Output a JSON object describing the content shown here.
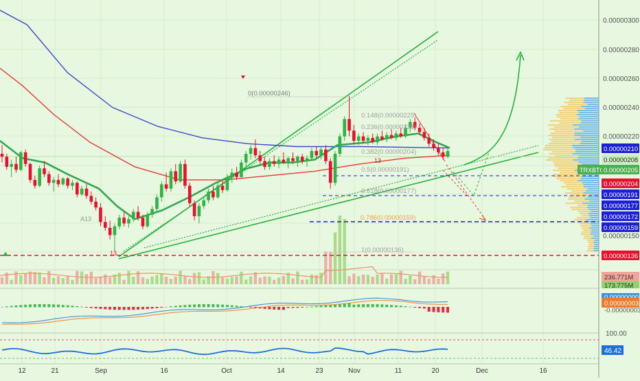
{
  "chart_data": {
    "type": "candlestick",
    "symbol": "TRXBTC",
    "price_axis": {
      "ylim": [
        1.3e-06,
        3.1e-06
      ],
      "ticks": [
        "0.00000300",
        "0.00000280",
        "0.00000260",
        "0.00000240",
        "0.00000220",
        "0.00000150"
      ]
    },
    "price_badges": [
      {
        "value": "0.00000210",
        "color": "#1b1fd6",
        "text_color": "#ffffff"
      },
      {
        "value": "0.00000208",
        "color": "#c9ecc2",
        "text_color": "#2b2b2b"
      },
      {
        "value": "0.00000205",
        "color": "#4caf50",
        "text_color": "#ffffff",
        "prefix": "TRXBTC"
      },
      {
        "value": "0.00000204",
        "color": "#e8112d",
        "text_color": "#ffffff"
      },
      {
        "value": "0.00000191",
        "color": "#1b1fd6",
        "text_color": "#ffffff"
      },
      {
        "value": "0.00000177",
        "color": "#1b1fd6",
        "text_color": "#ffffff"
      },
      {
        "value": "0.00000172",
        "color": "#1b1fd6",
        "text_color": "#ffffff"
      },
      {
        "value": "0.00000159",
        "color": "#1b1fd6",
        "text_color": "#ffffff"
      },
      {
        "value": "0.00000136",
        "color": "#e8112d",
        "text_color": "#ffffff"
      }
    ],
    "fib_levels": [
      {
        "ratio": "0",
        "value": "0.00000246",
        "label": "0(0.00000246)"
      },
      {
        "ratio": "0.148",
        "value": "0.00000225",
        "label": "0.148(0.00000225)"
      },
      {
        "ratio": "0.236",
        "value": "0.00000221",
        "label": "0.236(0.00000221)"
      },
      {
        "ratio": "0.382",
        "value": "0.00000204",
        "label": "0.382(0.00000204)"
      },
      {
        "ratio": "0.5",
        "value": "0.00000191",
        "label": "0.5(0.00000191)"
      },
      {
        "ratio": "0.618",
        "value": "0.00000177",
        "label": "0.618(0.00000177)"
      },
      {
        "ratio": "0.786",
        "value": "0.00000159",
        "label": "0.786(0.00000159)"
      },
      {
        "ratio": "1",
        "value": "0.00000136",
        "label": "1(0.00000136)"
      }
    ],
    "x_axis_labels": [
      "12",
      "21",
      "Sep",
      "16",
      "Oct",
      "14",
      "23",
      "Nov",
      "11",
      "20",
      "Dec",
      "16"
    ],
    "candles": [
      {
        "o": 2.06,
        "h": 2.12,
        "l": 2.0,
        "c": 2.04
      },
      {
        "o": 2.04,
        "h": 2.06,
        "l": 1.95,
        "c": 1.97
      },
      {
        "o": 1.97,
        "h": 2.02,
        "l": 1.9,
        "c": 1.99
      },
      {
        "o": 1.99,
        "h": 2.04,
        "l": 1.93,
        "c": 1.95
      },
      {
        "o": 1.95,
        "h": 2.08,
        "l": 1.94,
        "c": 2.07
      },
      {
        "o": 2.07,
        "h": 2.09,
        "l": 1.97,
        "c": 1.99
      },
      {
        "o": 1.99,
        "h": 2.0,
        "l": 1.86,
        "c": 1.88
      },
      {
        "o": 1.88,
        "h": 1.91,
        "l": 1.82,
        "c": 1.84
      },
      {
        "o": 1.84,
        "h": 1.98,
        "l": 1.83,
        "c": 1.96
      },
      {
        "o": 1.96,
        "h": 2.01,
        "l": 1.9,
        "c": 1.92
      },
      {
        "o": 1.92,
        "h": 1.94,
        "l": 1.84,
        "c": 1.86
      },
      {
        "o": 1.86,
        "h": 1.9,
        "l": 1.8,
        "c": 1.88
      },
      {
        "o": 1.88,
        "h": 1.92,
        "l": 1.83,
        "c": 1.85
      },
      {
        "o": 1.85,
        "h": 1.9,
        "l": 1.84,
        "c": 1.89
      },
      {
        "o": 1.89,
        "h": 1.9,
        "l": 1.82,
        "c": 1.84
      },
      {
        "o": 1.84,
        "h": 1.88,
        "l": 1.81,
        "c": 1.86
      },
      {
        "o": 1.86,
        "h": 1.87,
        "l": 1.76,
        "c": 1.78
      },
      {
        "o": 1.78,
        "h": 1.84,
        "l": 1.77,
        "c": 1.82
      },
      {
        "o": 1.82,
        "h": 1.85,
        "l": 1.75,
        "c": 1.77
      },
      {
        "o": 1.77,
        "h": 1.8,
        "l": 1.71,
        "c": 1.73
      },
      {
        "o": 1.73,
        "h": 1.76,
        "l": 1.67,
        "c": 1.69
      },
      {
        "o": 1.69,
        "h": 1.72,
        "l": 1.56,
        "c": 1.59
      },
      {
        "o": 1.59,
        "h": 1.63,
        "l": 1.53,
        "c": 1.55
      },
      {
        "o": 1.55,
        "h": 1.6,
        "l": 1.47,
        "c": 1.5
      },
      {
        "o": 1.5,
        "h": 1.58,
        "l": 1.39,
        "c": 1.56
      },
      {
        "o": 1.56,
        "h": 1.64,
        "l": 1.54,
        "c": 1.62
      },
      {
        "o": 1.62,
        "h": 1.66,
        "l": 1.56,
        "c": 1.58
      },
      {
        "o": 1.58,
        "h": 1.63,
        "l": 1.55,
        "c": 1.61
      },
      {
        "o": 1.61,
        "h": 1.68,
        "l": 1.59,
        "c": 1.66
      },
      {
        "o": 1.66,
        "h": 1.7,
        "l": 1.6,
        "c": 1.62
      },
      {
        "o": 1.62,
        "h": 1.64,
        "l": 1.54,
        "c": 1.56
      },
      {
        "o": 1.56,
        "h": 1.66,
        "l": 1.55,
        "c": 1.64
      },
      {
        "o": 1.64,
        "h": 1.7,
        "l": 1.62,
        "c": 1.68
      },
      {
        "o": 1.68,
        "h": 1.78,
        "l": 1.66,
        "c": 1.76
      },
      {
        "o": 1.76,
        "h": 1.87,
        "l": 1.73,
        "c": 1.85
      },
      {
        "o": 1.85,
        "h": 1.93,
        "l": 1.8,
        "c": 1.82
      },
      {
        "o": 1.82,
        "h": 1.96,
        "l": 1.8,
        "c": 1.94
      },
      {
        "o": 1.94,
        "h": 1.99,
        "l": 1.85,
        "c": 1.87
      },
      {
        "o": 1.87,
        "h": 2.01,
        "l": 1.86,
        "c": 1.99
      },
      {
        "o": 1.99,
        "h": 2.02,
        "l": 1.82,
        "c": 1.84
      },
      {
        "o": 1.84,
        "h": 1.86,
        "l": 1.7,
        "c": 1.72
      },
      {
        "o": 1.72,
        "h": 1.74,
        "l": 1.6,
        "c": 1.63
      },
      {
        "o": 1.63,
        "h": 1.72,
        "l": 1.58,
        "c": 1.7
      },
      {
        "o": 1.7,
        "h": 1.76,
        "l": 1.68,
        "c": 1.74
      },
      {
        "o": 1.74,
        "h": 1.82,
        "l": 1.72,
        "c": 1.8
      },
      {
        "o": 1.8,
        "h": 1.84,
        "l": 1.74,
        "c": 1.76
      },
      {
        "o": 1.76,
        "h": 1.86,
        "l": 1.75,
        "c": 1.84
      },
      {
        "o": 1.84,
        "h": 1.88,
        "l": 1.79,
        "c": 1.81
      },
      {
        "o": 1.81,
        "h": 1.92,
        "l": 1.8,
        "c": 1.9
      },
      {
        "o": 1.9,
        "h": 1.96,
        "l": 1.86,
        "c": 1.93
      },
      {
        "o": 1.93,
        "h": 1.97,
        "l": 1.88,
        "c": 1.9
      },
      {
        "o": 1.9,
        "h": 2.02,
        "l": 1.89,
        "c": 2.0
      },
      {
        "o": 2.0,
        "h": 2.08,
        "l": 1.97,
        "c": 2.06
      },
      {
        "o": 2.06,
        "h": 2.12,
        "l": 2.02,
        "c": 2.1
      },
      {
        "o": 2.1,
        "h": 2.16,
        "l": 2.03,
        "c": 2.05
      },
      {
        "o": 2.05,
        "h": 2.08,
        "l": 1.99,
        "c": 2.01
      },
      {
        "o": 2.01,
        "h": 2.04,
        "l": 1.95,
        "c": 1.97
      },
      {
        "o": 1.97,
        "h": 2.03,
        "l": 1.95,
        "c": 2.01
      },
      {
        "o": 2.01,
        "h": 2.05,
        "l": 1.97,
        "c": 1.99
      },
      {
        "o": 1.99,
        "h": 2.04,
        "l": 1.96,
        "c": 2.02
      },
      {
        "o": 2.02,
        "h": 2.07,
        "l": 1.99,
        "c": 2.0
      },
      {
        "o": 2.0,
        "h": 2.04,
        "l": 1.96,
        "c": 2.03
      },
      {
        "o": 2.03,
        "h": 2.07,
        "l": 1.99,
        "c": 2.01
      },
      {
        "o": 2.01,
        "h": 2.05,
        "l": 1.97,
        "c": 2.04
      },
      {
        "o": 2.04,
        "h": 2.06,
        "l": 1.99,
        "c": 2.01
      },
      {
        "o": 2.01,
        "h": 2.05,
        "l": 1.97,
        "c": 2.03
      },
      {
        "o": 2.03,
        "h": 2.1,
        "l": 2.01,
        "c": 2.08
      },
      {
        "o": 2.08,
        "h": 2.11,
        "l": 2.03,
        "c": 2.05
      },
      {
        "o": 2.05,
        "h": 2.11,
        "l": 2.02,
        "c": 2.09
      },
      {
        "o": 2.09,
        "h": 2.12,
        "l": 1.99,
        "c": 2.01
      },
      {
        "o": 2.01,
        "h": 2.03,
        "l": 1.82,
        "c": 1.86
      },
      {
        "o": 1.86,
        "h": 2.08,
        "l": 1.84,
        "c": 2.06
      },
      {
        "o": 2.06,
        "h": 2.2,
        "l": 2.04,
        "c": 2.18
      },
      {
        "o": 2.18,
        "h": 2.32,
        "l": 2.15,
        "c": 2.3
      },
      {
        "o": 2.3,
        "h": 2.46,
        "l": 2.18,
        "c": 2.22
      },
      {
        "o": 2.22,
        "h": 2.26,
        "l": 2.13,
        "c": 2.15
      },
      {
        "o": 2.15,
        "h": 2.2,
        "l": 2.12,
        "c": 2.18
      },
      {
        "o": 2.18,
        "h": 2.21,
        "l": 2.13,
        "c": 2.15
      },
      {
        "o": 2.15,
        "h": 2.19,
        "l": 2.12,
        "c": 2.17
      },
      {
        "o": 2.17,
        "h": 2.2,
        "l": 2.13,
        "c": 2.14
      },
      {
        "o": 2.14,
        "h": 2.2,
        "l": 2.12,
        "c": 2.18
      },
      {
        "o": 2.18,
        "h": 2.22,
        "l": 2.15,
        "c": 2.16
      },
      {
        "o": 2.16,
        "h": 2.21,
        "l": 2.14,
        "c": 2.19
      },
      {
        "o": 2.19,
        "h": 2.23,
        "l": 2.16,
        "c": 2.17
      },
      {
        "o": 2.17,
        "h": 2.22,
        "l": 2.15,
        "c": 2.2
      },
      {
        "o": 2.2,
        "h": 2.24,
        "l": 2.17,
        "c": 2.18
      },
      {
        "o": 2.18,
        "h": 2.26,
        "l": 2.17,
        "c": 2.24
      },
      {
        "o": 2.24,
        "h": 2.3,
        "l": 2.21,
        "c": 2.28
      },
      {
        "o": 2.28,
        "h": 2.31,
        "l": 2.22,
        "c": 2.24
      },
      {
        "o": 2.24,
        "h": 2.27,
        "l": 2.19,
        "c": 2.21
      },
      {
        "o": 2.21,
        "h": 2.24,
        "l": 2.15,
        "c": 2.17
      },
      {
        "o": 2.17,
        "h": 2.2,
        "l": 2.11,
        "c": 2.13
      },
      {
        "o": 2.13,
        "h": 2.16,
        "l": 2.08,
        "c": 2.1
      },
      {
        "o": 2.1,
        "h": 2.13,
        "l": 2.05,
        "c": 2.07
      },
      {
        "o": 2.07,
        "h": 2.1,
        "l": 2.02,
        "c": 2.04
      },
      {
        "o": 2.04,
        "h": 2.1,
        "l": 2.03,
        "c": 2.08
      }
    ],
    "moving_averages": [
      {
        "color": "#3f48cc",
        "anchors": [
          [
            0,
            3.05
          ],
          [
            0.06,
            2.95
          ],
          [
            0.15,
            2.62
          ],
          [
            0.25,
            2.38
          ],
          [
            0.35,
            2.25
          ],
          [
            0.45,
            2.17
          ],
          [
            0.55,
            2.13
          ],
          [
            0.66,
            2.11
          ],
          [
            0.8,
            2.11
          ],
          [
            1,
            2.1
          ]
        ]
      },
      {
        "color": "#e53935",
        "anchors": [
          [
            0,
            2.65
          ],
          [
            0.05,
            2.53
          ],
          [
            0.12,
            2.33
          ],
          [
            0.2,
            2.14
          ],
          [
            0.3,
            1.97
          ],
          [
            0.4,
            1.88
          ],
          [
            0.5,
            1.88
          ],
          [
            0.6,
            1.91
          ],
          [
            0.7,
            1.94
          ],
          [
            0.8,
            1.99
          ],
          [
            0.9,
            2.03
          ],
          [
            1,
            2.05
          ]
        ]
      },
      {
        "color": "#2fa84f",
        "anchors": [
          [
            0,
            2.15
          ],
          [
            0.05,
            2.03
          ],
          [
            0.1,
            2.0
          ],
          [
            0.15,
            1.92
          ],
          [
            0.22,
            1.82
          ],
          [
            0.26,
            1.7
          ],
          [
            0.3,
            1.61
          ],
          [
            0.36,
            1.67
          ],
          [
            0.42,
            1.76
          ],
          [
            0.48,
            1.86
          ],
          [
            0.55,
            1.96
          ],
          [
            0.6,
            2.0
          ],
          [
            0.65,
            2.0
          ],
          [
            0.7,
            2.02
          ],
          [
            0.75,
            2.12
          ],
          [
            0.82,
            2.14
          ],
          [
            0.88,
            2.18
          ],
          [
            0.93,
            2.2
          ],
          [
            0.97,
            2.14
          ],
          [
            1,
            2.1
          ]
        ]
      }
    ],
    "volume": {
      "last_label": "236.771M",
      "ma_label": "173.775M",
      "color_up": "#9ed67c",
      "color_down": "#e7a79c"
    },
    "macd": {
      "label1": "0.00000000",
      "label2": "0.00000003",
      "label3": "-0.00000003"
    },
    "rsi": {
      "value": "46.42",
      "upper": "100.00"
    },
    "annotations": {
      "marker_low": "13",
      "marker_high": "13",
      "count_label": "A13"
    }
  }
}
